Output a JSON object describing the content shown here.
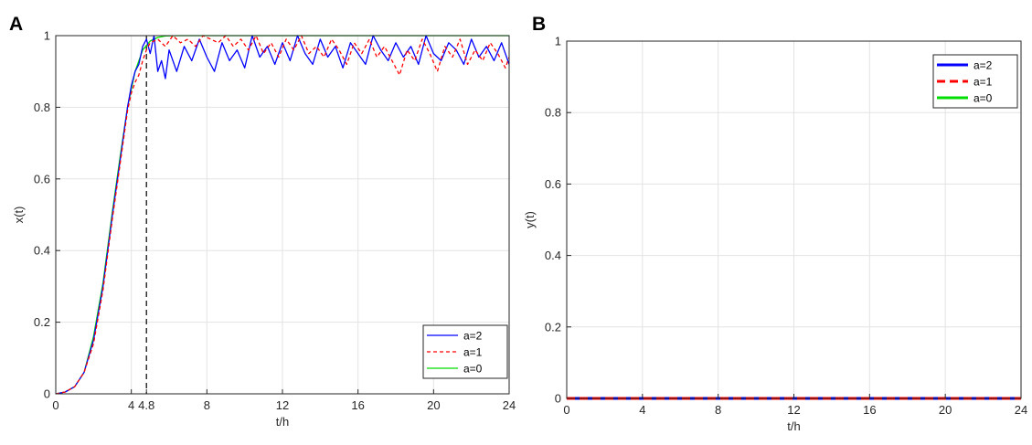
{
  "chart_data": [
    {
      "type": "line",
      "panel_label": "A",
      "title": "",
      "xlabel": "t/h",
      "ylabel": "x(t)",
      "xlim": [
        0,
        24
      ],
      "ylim": [
        0,
        1
      ],
      "xticks": [
        0,
        4,
        4.8,
        8,
        12,
        16,
        20,
        24
      ],
      "xtick_labels": [
        "0",
        "4",
        "4.8",
        "8",
        "12",
        "16",
        "20",
        "24"
      ],
      "yticks": [
        0,
        0.2,
        0.4,
        0.6,
        0.8,
        1
      ],
      "ytick_labels": [
        "0",
        "0.2",
        "0.4",
        "0.6",
        "0.8",
        "1"
      ],
      "grid": true,
      "legend_position": "bottom-right",
      "annotations": [
        {
          "type": "vline",
          "x": 4.8,
          "style": "dashed",
          "color": "#000000"
        }
      ],
      "series": [
        {
          "name": "a=2",
          "color": "#0000ff",
          "style": "solid",
          "x": [
            0,
            0.5,
            1,
            1.5,
            2,
            2.5,
            3,
            3.4,
            3.8,
            4.0,
            4.2,
            4.4,
            4.6,
            4.8,
            5.0,
            5.2,
            5.4,
            5.6,
            5.8,
            6.0,
            6.4,
            6.8,
            7.2,
            7.6,
            8.0,
            8.4,
            8.8,
            9.2,
            9.6,
            10.0,
            10.4,
            10.8,
            11.2,
            11.6,
            12.0,
            12.4,
            12.8,
            13.2,
            13.6,
            14.0,
            14.4,
            14.8,
            15.2,
            15.6,
            16.0,
            16.4,
            16.8,
            17.2,
            17.6,
            18.0,
            18.4,
            18.8,
            19.2,
            19.6,
            20.0,
            20.4,
            20.8,
            21.2,
            21.6,
            22.0,
            22.4,
            22.8,
            23.2,
            23.6,
            24.0
          ],
          "values": [
            0,
            0.005,
            0.02,
            0.06,
            0.15,
            0.3,
            0.5,
            0.65,
            0.8,
            0.86,
            0.9,
            0.92,
            0.97,
            0.99,
            0.95,
            1.0,
            0.9,
            0.93,
            0.88,
            0.96,
            0.9,
            0.97,
            0.93,
            0.99,
            0.94,
            0.9,
            0.98,
            0.93,
            0.96,
            0.91,
            1.0,
            0.94,
            0.97,
            0.92,
            0.98,
            0.93,
            1.0,
            0.95,
            0.92,
            0.99,
            0.94,
            0.97,
            0.91,
            0.98,
            0.95,
            0.92,
            1.0,
            0.96,
            0.93,
            0.98,
            0.94,
            0.97,
            0.92,
            1.0,
            0.95,
            0.93,
            0.98,
            0.96,
            0.92,
            0.99,
            0.94,
            0.97,
            0.93,
            0.98,
            0.92
          ]
        },
        {
          "name": "a=1",
          "color": "#ff0000",
          "style": "dashed",
          "x": [
            0,
            0.5,
            1,
            1.5,
            2,
            2.5,
            3,
            3.4,
            3.8,
            4.0,
            4.2,
            4.4,
            4.6,
            4.8,
            5.0,
            5.4,
            5.8,
            6.2,
            6.6,
            7.0,
            7.4,
            7.8,
            8.2,
            8.6,
            9.0,
            9.4,
            9.8,
            10.2,
            10.6,
            11.0,
            11.4,
            11.8,
            12.2,
            12.6,
            13.0,
            13.4,
            13.8,
            14.2,
            14.6,
            15.0,
            15.4,
            15.8,
            16.2,
            16.6,
            17.0,
            17.4,
            17.8,
            18.2,
            18.6,
            19.0,
            19.4,
            19.8,
            20.2,
            20.6,
            21.0,
            21.4,
            21.8,
            22.2,
            22.6,
            23.0,
            23.4,
            23.8,
            24.0
          ],
          "values": [
            0,
            0.005,
            0.02,
            0.06,
            0.14,
            0.29,
            0.49,
            0.64,
            0.79,
            0.84,
            0.87,
            0.89,
            0.93,
            0.96,
            0.98,
            0.99,
            0.97,
            1.0,
            0.98,
            0.99,
            0.97,
            1.0,
            0.99,
            0.98,
            1.0,
            0.97,
            0.99,
            0.96,
            1.0,
            0.95,
            0.98,
            0.94,
            0.99,
            0.96,
            1.0,
            0.95,
            0.97,
            0.94,
            0.99,
            0.96,
            0.92,
            0.98,
            0.95,
            0.99,
            0.94,
            0.97,
            0.93,
            0.89,
            0.96,
            0.93,
            0.99,
            0.95,
            0.9,
            0.97,
            0.94,
            0.99,
            0.92,
            0.96,
            0.93,
            0.98,
            0.95,
            0.91,
            0.94
          ]
        },
        {
          "name": "a=0",
          "color": "#00dd00",
          "style": "solid",
          "x": [
            0,
            0.5,
            1,
            1.5,
            2,
            2.5,
            3,
            3.4,
            3.8,
            4.2,
            4.6,
            5.0,
            5.4,
            5.8,
            6.5,
            8,
            12,
            16,
            20,
            24
          ],
          "values": [
            0,
            0.005,
            0.02,
            0.06,
            0.16,
            0.31,
            0.51,
            0.66,
            0.8,
            0.9,
            0.96,
            0.985,
            0.995,
            0.999,
            1,
            1,
            1,
            1,
            1,
            1
          ]
        }
      ]
    },
    {
      "type": "line",
      "panel_label": "B",
      "title": "",
      "xlabel": "t/h",
      "ylabel": "y(t)",
      "xlim": [
        0,
        24
      ],
      "ylim": [
        0,
        1
      ],
      "xticks": [
        0,
        4,
        8,
        12,
        16,
        20,
        24
      ],
      "xtick_labels": [
        "0",
        "4",
        "8",
        "12",
        "16",
        "20",
        "24"
      ],
      "yticks": [
        0,
        0.2,
        0.4,
        0.6,
        0.8,
        1
      ],
      "ytick_labels": [
        "0",
        "0.2",
        "0.4",
        "0.6",
        "0.8",
        "1"
      ],
      "grid": true,
      "legend_position": "top-right",
      "series": [
        {
          "name": "a=2",
          "color": "#0000ff",
          "style": "solid",
          "x": [
            0,
            24
          ],
          "values": [
            0,
            0
          ]
        },
        {
          "name": "a=1",
          "color": "#ff0000",
          "style": "dashed",
          "x": [
            0,
            24
          ],
          "values": [
            0,
            0
          ]
        },
        {
          "name": "a=0",
          "color": "#00dd00",
          "style": "solid",
          "x": [
            0,
            24
          ],
          "values": [
            0,
            0
          ]
        }
      ]
    }
  ]
}
